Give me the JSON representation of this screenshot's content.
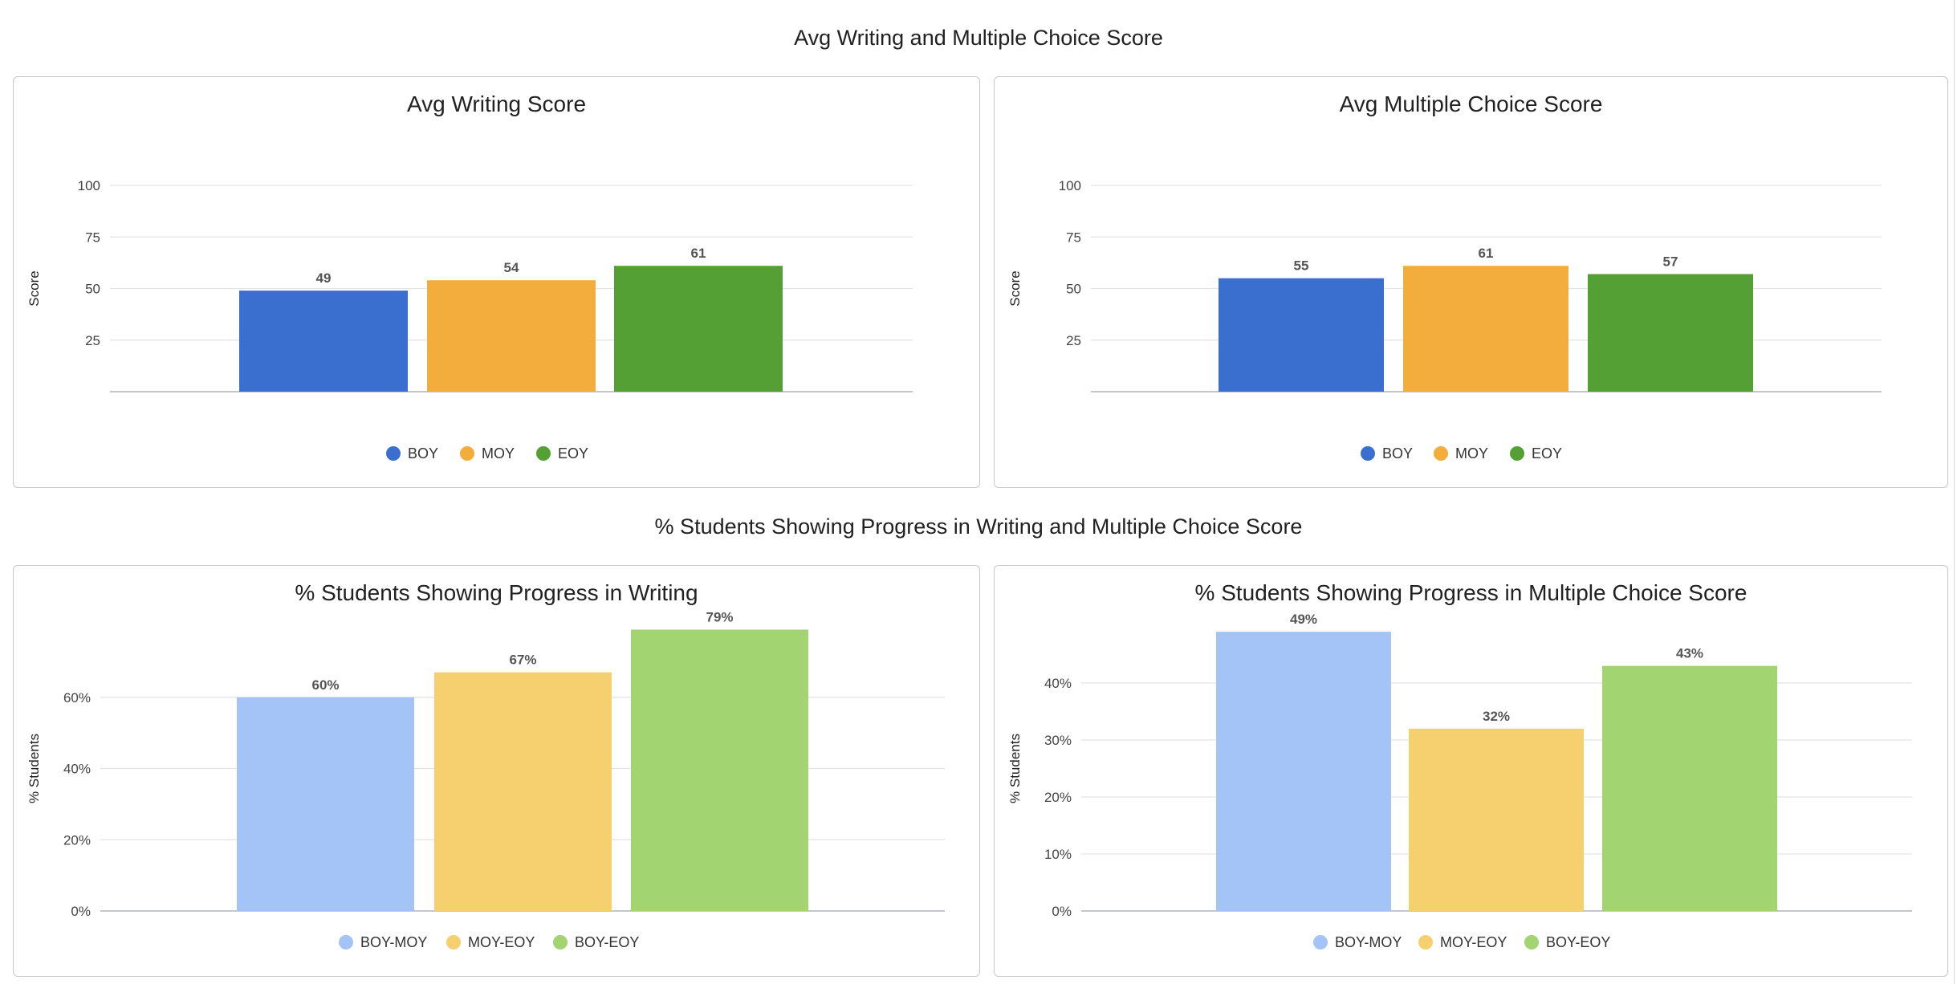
{
  "sections": [
    {
      "title": "Avg Writing and Multiple Choice Score"
    },
    {
      "title": "% Students Showing Progress in Writing and Multiple Choice Score"
    }
  ],
  "chart_data": [
    {
      "type": "bar",
      "title": "Avg Writing Score",
      "xlabel": "",
      "ylabel": "Score",
      "categories": [
        "BOY",
        "MOY",
        "EOY"
      ],
      "values": [
        49,
        54,
        61
      ],
      "data_labels": [
        "49",
        "54",
        "61"
      ],
      "colors": [
        "#3a6fd0",
        "#f3ad3d",
        "#55a035"
      ],
      "ylim": [
        0,
        100
      ],
      "yticks": [
        25,
        50,
        75,
        100
      ],
      "ytick_labels": [
        "25",
        "50",
        "75",
        "100"
      ],
      "grid": true,
      "legend": [
        "BOY",
        "MOY",
        "EOY"
      ],
      "legend_position": "bottom"
    },
    {
      "type": "bar",
      "title": "Avg Multiple Choice Score",
      "xlabel": "",
      "ylabel": "Score",
      "categories": [
        "BOY",
        "MOY",
        "EOY"
      ],
      "values": [
        55,
        61,
        57
      ],
      "data_labels": [
        "55",
        "61",
        "57"
      ],
      "colors": [
        "#3a6fd0",
        "#f3ad3d",
        "#55a035"
      ],
      "ylim": [
        0,
        100
      ],
      "yticks": [
        25,
        50,
        75,
        100
      ],
      "ytick_labels": [
        "25",
        "50",
        "75",
        "100"
      ],
      "grid": true,
      "legend": [
        "BOY",
        "MOY",
        "EOY"
      ],
      "legend_position": "bottom"
    },
    {
      "type": "bar",
      "title": "% Students Showing Progress in Writing",
      "xlabel": "",
      "ylabel": "% Students",
      "categories": [
        "BOY-MOY",
        "MOY-EOY",
        "BOY-EOY"
      ],
      "values": [
        60,
        67,
        79
      ],
      "data_labels": [
        "60%",
        "67%",
        "79%"
      ],
      "colors": [
        "#a4c4f8",
        "#f6d06e",
        "#a2d572"
      ],
      "ylim": [
        0,
        80
      ],
      "yticks": [
        0,
        20,
        40,
        60
      ],
      "ytick_labels": [
        "0%",
        "20%",
        "40%",
        "60%"
      ],
      "grid": true,
      "legend": [
        "BOY-MOY",
        "MOY-EOY",
        "BOY-EOY"
      ],
      "legend_position": "bottom"
    },
    {
      "type": "bar",
      "title": "% Students Showing Progress in Multiple Choice Score",
      "xlabel": "",
      "ylabel": "% Students",
      "categories": [
        "BOY-MOY",
        "MOY-EOY",
        "BOY-EOY"
      ],
      "values": [
        49,
        32,
        43
      ],
      "data_labels": [
        "49%",
        "32%",
        "43%"
      ],
      "colors": [
        "#a4c4f8",
        "#f6d06e",
        "#a2d572"
      ],
      "ylim": [
        0,
        50
      ],
      "yticks": [
        0,
        10,
        20,
        30,
        40
      ],
      "ytick_labels": [
        "0%",
        "10%",
        "20%",
        "30%",
        "40%"
      ],
      "grid": true,
      "legend": [
        "BOY-MOY",
        "MOY-EOY",
        "BOY-EOY"
      ],
      "legend_position": "bottom"
    }
  ]
}
